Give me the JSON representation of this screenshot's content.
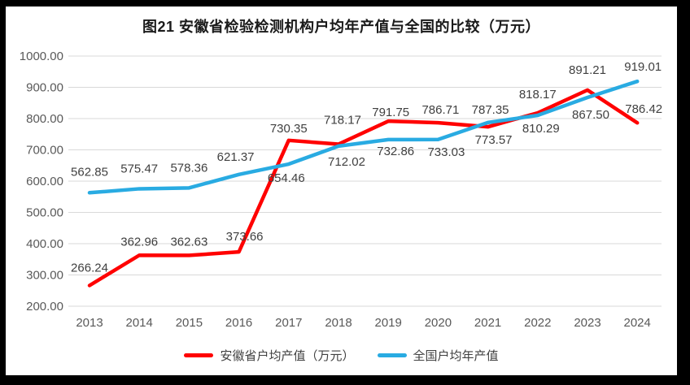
{
  "chart_data": {
    "type": "line",
    "title": "图21 安徽省检验检测机构户均年产值与全国的比较（万元）",
    "categories": [
      "2013",
      "2014",
      "2015",
      "2016",
      "2017",
      "2018",
      "2019",
      "2020",
      "2021",
      "2022",
      "2023",
      "2024"
    ],
    "series": [
      {
        "name": "安徽省户均产值（万元）",
        "color": "#FF0000",
        "values": [
          266.24,
          362.96,
          362.63,
          373.66,
          730.35,
          718.17,
          791.75,
          786.71,
          773.57,
          818.17,
          891.21,
          786.42
        ]
      },
      {
        "name": "全国户均年产值",
        "color": "#29ABE2",
        "values": [
          562.85,
          575.47,
          578.36,
          621.37,
          654.46,
          712.02,
          732.86,
          733.03,
          787.35,
          810.29,
          867.5,
          919.01
        ]
      }
    ],
    "ylim": [
      200,
      1000
    ],
    "ytick_step": 100,
    "ytick_labels": [
      "200.00",
      "300.00",
      "400.00",
      "500.00",
      "600.00",
      "700.00",
      "800.00",
      "900.00",
      "1000.00"
    ],
    "grid": true,
    "data_labels": true,
    "data_label_format": "2dp",
    "legend_position": "bottom"
  },
  "colors": {
    "frame": "#000000",
    "background": "#FFFFFF",
    "gridline": "#D9D9D9",
    "axis_text": "#595959",
    "data_label_text": "#404040",
    "title_text": "#1A1A1A"
  }
}
